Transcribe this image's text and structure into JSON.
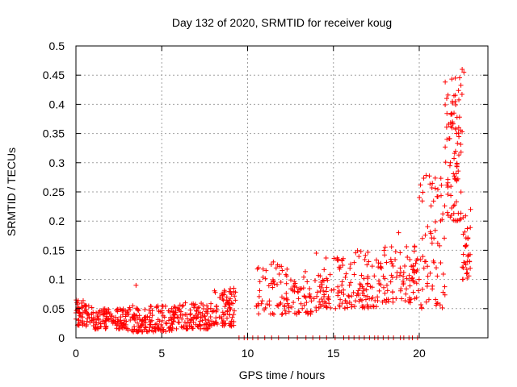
{
  "chart_data": {
    "type": "scatter",
    "title": "Day 132 of 2020, SRMTID for receiver koug",
    "xlabel": "GPS time / hours",
    "ylabel": "SRMTID / TECUs",
    "xlim": [
      0,
      24
    ],
    "ylim": [
      0,
      0.5
    ],
    "xticks": [
      0,
      5,
      10,
      15,
      20
    ],
    "xtick_labels": [
      "0",
      "5",
      "10",
      "15",
      "20"
    ],
    "yticks": [
      0,
      0.05,
      0.1,
      0.15,
      0.2,
      0.25,
      0.3,
      0.35,
      0.4,
      0.45,
      0.5
    ],
    "ytick_labels": [
      "0",
      "0.05",
      "0.1",
      "0.15",
      "0.2",
      "0.25",
      "0.3",
      "0.35",
      "0.4",
      "0.45",
      "0.5"
    ],
    "grid": true,
    "marker": "plus",
    "marker_color": "#ff0000",
    "series": [
      {
        "name": "SRMTID",
        "segments": [
          {
            "x_start": 0.0,
            "x_end": 1.0,
            "y_min": 0.02,
            "y_max": 0.065,
            "count": 60
          },
          {
            "x_start": 1.0,
            "x_end": 3.0,
            "y_min": 0.015,
            "y_max": 0.05,
            "count": 110
          },
          {
            "x_start": 3.0,
            "x_end": 6.0,
            "y_min": 0.01,
            "y_max": 0.055,
            "count": 150
          },
          {
            "x_start": 6.0,
            "x_end": 8.0,
            "y_min": 0.015,
            "y_max": 0.06,
            "count": 100
          },
          {
            "x_start": 8.0,
            "x_end": 9.3,
            "y_min": 0.02,
            "y_max": 0.085,
            "count": 80
          },
          {
            "x_start": 10.5,
            "x_end": 12.0,
            "y_min": 0.04,
            "y_max": 0.13,
            "count": 45
          },
          {
            "x_start": 12.0,
            "x_end": 14.0,
            "y_min": 0.04,
            "y_max": 0.12,
            "count": 70
          },
          {
            "x_start": 14.0,
            "x_end": 16.0,
            "y_min": 0.05,
            "y_max": 0.14,
            "count": 80
          },
          {
            "x_start": 16.0,
            "x_end": 18.0,
            "y_min": 0.05,
            "y_max": 0.15,
            "count": 80
          },
          {
            "x_start": 18.0,
            "x_end": 20.0,
            "y_min": 0.06,
            "y_max": 0.16,
            "count": 80
          },
          {
            "x_start": 20.0,
            "x_end": 21.5,
            "y_min": 0.05,
            "y_max": 0.28,
            "count": 70
          },
          {
            "x_start": 21.5,
            "x_end": 22.5,
            "y_min": 0.2,
            "y_max": 0.45,
            "count": 90
          },
          {
            "x_start": 22.5,
            "x_end": 23.0,
            "y_min": 0.1,
            "y_max": 0.22,
            "count": 35
          }
        ],
        "spikes": [
          {
            "x": 3.5,
            "y": 0.09
          },
          {
            "x": 9.2,
            "y": 0.085
          },
          {
            "x": 11.5,
            "y": 0.13
          },
          {
            "x": 14.0,
            "y": 0.145
          },
          {
            "x": 16.6,
            "y": 0.148
          },
          {
            "x": 18.8,
            "y": 0.18
          },
          {
            "x": 21.6,
            "y": 0.41
          },
          {
            "x": 22.1,
            "y": 0.445
          },
          {
            "x": 22.5,
            "y": 0.46
          },
          {
            "x": 22.6,
            "y": 0.455
          }
        ],
        "zero_points_x": [
          9.5,
          9.8,
          10.0,
          10.3,
          10.6,
          11.0,
          11.4,
          11.8,
          12.4,
          12.9,
          13.4,
          13.8,
          14.2,
          14.6,
          15.1,
          15.6,
          15.9,
          16.2,
          16.5,
          16.8,
          17.1,
          17.4,
          17.6,
          17.9,
          18.2,
          18.5,
          18.9,
          19.1,
          19.4,
          19.6,
          19.9
        ]
      }
    ]
  }
}
